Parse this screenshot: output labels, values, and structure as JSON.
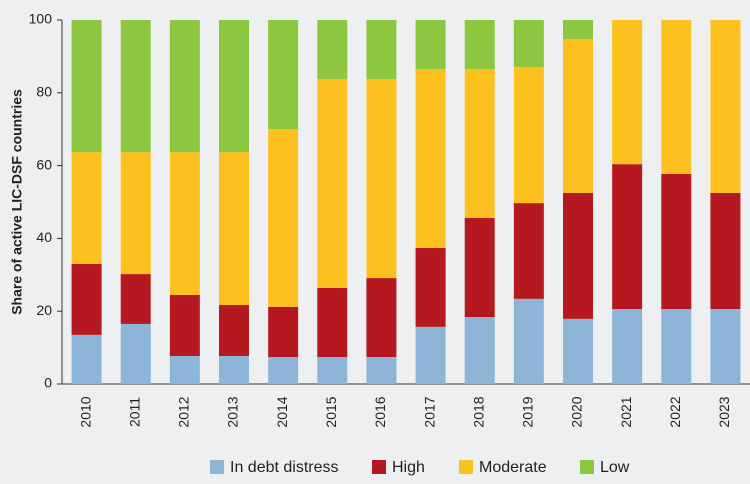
{
  "chart_data": {
    "type": "stacked_bar",
    "ylabel": "Share of active LIC-DSF countries",
    "categories": [
      "2010",
      "2011",
      "2012",
      "2013",
      "2014",
      "2015",
      "2016",
      "2017",
      "2018",
      "2019",
      "2020",
      "2021",
      "2022",
      "2023"
    ],
    "series": [
      {
        "name": "In debt distress",
        "color": "#8db5d8",
        "values": [
          13.5,
          16.5,
          7.7,
          7.7,
          7.4,
          7.4,
          7.4,
          15.7,
          18.4,
          23.4,
          17.9,
          20.6,
          20.6,
          20.6
        ]
      },
      {
        "name": "High",
        "color": "#b5191f",
        "values": [
          19.5,
          13.7,
          16.8,
          14,
          13.8,
          19,
          21.7,
          21.7,
          27.2,
          26.3,
          34.6,
          39.8,
          37.1,
          31.9
        ]
      },
      {
        "name": "Moderate",
        "color": "#fcc11f",
        "values": [
          30.7,
          33.5,
          39.2,
          42,
          48.8,
          57.4,
          54.7,
          49.1,
          40.9,
          37.4,
          42.3,
          39.6,
          42.3,
          47.5
        ]
      },
      {
        "name": "Low",
        "color": "#8dc63f",
        "values": [
          36.3,
          36.3,
          36.3,
          36.3,
          30,
          16.2,
          16.2,
          13.5,
          13.5,
          12.9,
          5.2,
          0,
          0,
          0
        ]
      }
    ],
    "ylim": [
      0,
      100
    ],
    "yticks": [
      0,
      20,
      40,
      60,
      80,
      100
    ],
    "legend": "bottom"
  }
}
